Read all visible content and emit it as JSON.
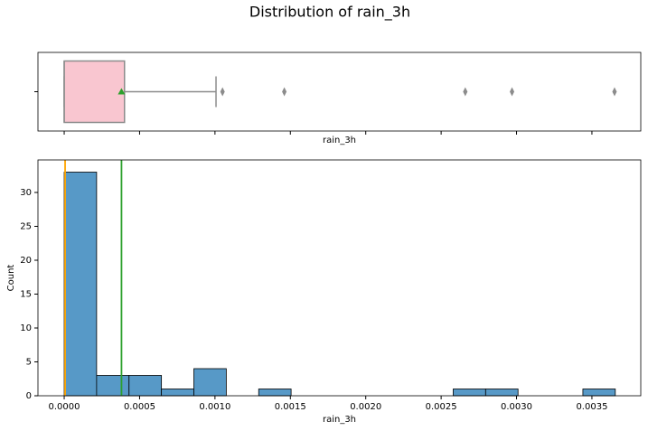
{
  "title": "Distribution of rain_3h",
  "chart_data": [
    {
      "type": "box",
      "xlabel": "rain_3h",
      "min": 0,
      "q1": 0,
      "median": 0,
      "q3": 0.0004,
      "max": 0.001007,
      "mean": 0.00038,
      "fliers": [
        0.00105,
        0.00146,
        0.00266,
        0.00297,
        0.00365
      ],
      "color": "#f9c6d0",
      "edgecolor": "#8c8c8c",
      "mean_color": "#2ca02c",
      "xlim": [
        -0.000174,
        0.003824
      ]
    },
    {
      "type": "histogram",
      "xlabel": "rain_3h",
      "ylabel": "Count",
      "bins": [
        0,
        0.000215,
        0.00043,
        0.000645,
        0.00086,
        0.001075,
        0.00129,
        0.001505,
        0.00172,
        0.001935,
        0.00215,
        0.002365,
        0.00258,
        0.002795,
        0.00301,
        0.003225,
        0.00344,
        0.003655
      ],
      "counts": [
        33,
        3,
        3,
        1,
        4,
        0,
        1,
        0,
        0,
        0,
        0,
        0,
        1,
        1,
        0,
        0,
        1
      ],
      "color": "#5799c7",
      "edgecolor": "#000000",
      "lines": [
        {
          "x": 6e-06,
          "color": "#ffa500"
        },
        {
          "x": 0.00038,
          "color": "#2ca02c"
        }
      ],
      "xlim": [
        -0.000174,
        0.003824
      ],
      "ylim": [
        0,
        34.8
      ],
      "xticks": [
        {
          "value": 0,
          "label": "0.0000"
        },
        0.0005,
        {
          "value": 0.001,
          "label": "0.0010"
        },
        0.0015,
        {
          "value": 0.002,
          "label": "0.0020"
        },
        0.0025,
        {
          "value": 0.003,
          "label": "0.0030"
        },
        0.0035
      ],
      "yticks": [
        0,
        5,
        10,
        15,
        20,
        25,
        30
      ]
    }
  ]
}
